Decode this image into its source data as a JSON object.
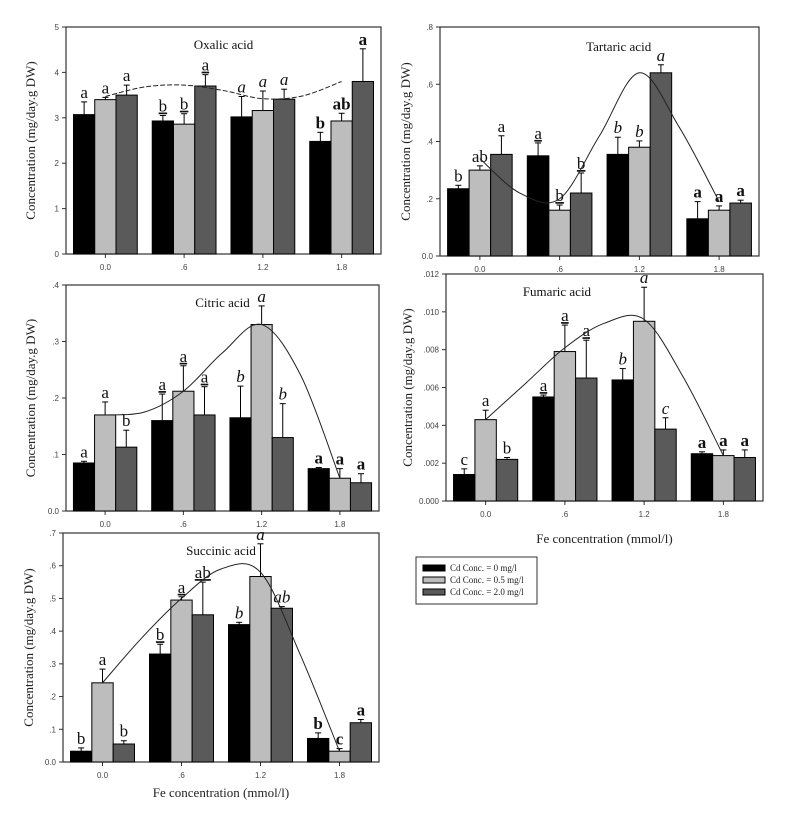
{
  "legend": {
    "entries": [
      {
        "label": "Cd Conc. = 0 mg/l",
        "color": "#000000"
      },
      {
        "label": "Cd Conc. = 0.5 mg/l",
        "color": "#bdbdbd"
      },
      {
        "label": "Cd Conc. = 2.0 mg/l",
        "color": "#5a5a5a"
      }
    ]
  },
  "chart_data": [
    {
      "type": "bar",
      "title": "Oxalic acid",
      "xlabel": "",
      "ylabel": "Concentration (mg/day.g DW)",
      "categories": [
        "0.0",
        ".6",
        "1.2",
        "1.8"
      ],
      "ylim": [
        0,
        5
      ],
      "yticks": [
        "0",
        "1",
        "2",
        "3",
        "4",
        "5"
      ],
      "yticks_values": [
        0,
        1,
        2,
        3,
        4,
        5
      ],
      "series": [
        {
          "name": "Cd Conc. = 0 mg/l",
          "values": [
            3.07,
            2.93,
            3.02,
            2.48
          ],
          "errors": [
            0.28,
            0.12,
            0.45,
            0.2
          ],
          "letters": [
            "a",
            "b",
            "a",
            "b"
          ],
          "italic": [
            false,
            false,
            true,
            false
          ],
          "underline": [
            false,
            true,
            false,
            false
          ],
          "bold": [
            false,
            false,
            false,
            true
          ]
        },
        {
          "name": "Cd Conc. = 0.5 mg/l",
          "values": [
            3.4,
            2.86,
            3.16,
            2.93
          ],
          "errors": [
            0.05,
            0.23,
            0.43,
            0.17
          ],
          "letters": [
            "a",
            "b",
            "a",
            "ab"
          ],
          "italic": [
            false,
            false,
            true,
            false
          ],
          "underline": [
            false,
            true,
            false,
            false
          ],
          "bold": [
            false,
            false,
            false,
            true
          ]
        },
        {
          "name": "Cd Conc. = 2.0 mg/l",
          "values": [
            3.5,
            3.7,
            3.41,
            3.8
          ],
          "errors": [
            0.22,
            0.25,
            0.22,
            0.72
          ],
          "letters": [
            "a",
            "a",
            "a",
            "a"
          ],
          "italic": [
            false,
            false,
            true,
            false
          ],
          "underline": [
            false,
            true,
            false,
            false
          ],
          "bold": [
            false,
            false,
            false,
            true
          ]
        }
      ],
      "trend": {
        "style": "dashed",
        "x": [
          0.0,
          0.3,
          0.6,
          0.9,
          1.2,
          1.5,
          1.8
        ],
        "y": [
          3.47,
          3.68,
          3.72,
          3.6,
          3.42,
          3.48,
          3.8
        ]
      }
    },
    {
      "type": "bar",
      "title": "Tartaric acid",
      "xlabel": "",
      "ylabel": "Concentration (mg/day.g DW)",
      "categories": [
        "0.0",
        ".6",
        "1.2",
        "1.8"
      ],
      "ylim": [
        0,
        0.8
      ],
      "yticks": [
        "0.0",
        ".2",
        ".4",
        ".6",
        ".8"
      ],
      "yticks_values": [
        0,
        0.2,
        0.4,
        0.6,
        0.8
      ],
      "series": [
        {
          "name": "Cd Conc. = 0 mg/l",
          "values": [
            0.235,
            0.35,
            0.355,
            0.13
          ],
          "errors": [
            0.012,
            0.045,
            0.06,
            0.06
          ],
          "letters": [
            "b",
            "a",
            "b",
            "a"
          ],
          "italic": [
            false,
            false,
            true,
            false
          ],
          "underline": [
            false,
            true,
            false,
            false
          ],
          "bold": [
            false,
            false,
            false,
            true
          ]
        },
        {
          "name": "Cd Conc. = 0.5 mg/l",
          "values": [
            0.3,
            0.16,
            0.38,
            0.16
          ],
          "errors": [
            0.015,
            0.018,
            0.022,
            0.015
          ],
          "letters": [
            "ab",
            "b",
            "b",
            "a"
          ],
          "italic": [
            false,
            false,
            true,
            false
          ],
          "underline": [
            false,
            true,
            false,
            false
          ],
          "bold": [
            false,
            false,
            false,
            true
          ]
        },
        {
          "name": "Cd Conc. = 2.0 mg/l",
          "values": [
            0.355,
            0.22,
            0.64,
            0.185
          ],
          "errors": [
            0.065,
            0.07,
            0.028,
            0.01
          ],
          "letters": [
            "a",
            "b",
            "a",
            "a"
          ],
          "italic": [
            false,
            false,
            true,
            false
          ],
          "underline": [
            false,
            true,
            false,
            false
          ],
          "bold": [
            false,
            false,
            false,
            true
          ]
        }
      ],
      "trend": {
        "style": "solid",
        "x": [
          0.0,
          0.3,
          0.6,
          0.9,
          1.2,
          1.5,
          1.8
        ],
        "y": [
          0.34,
          0.22,
          0.2,
          0.42,
          0.64,
          0.45,
          0.19
        ]
      }
    },
    {
      "type": "bar",
      "title": "Citric acid",
      "xlabel": "",
      "ylabel": "Concentration (mg/day.g DW)",
      "categories": [
        "0.0",
        ".6",
        "1.2",
        "1.8"
      ],
      "ylim": [
        0,
        0.4
      ],
      "yticks": [
        "0.0",
        ".1",
        ".2",
        ".3",
        ".4"
      ],
      "yticks_values": [
        0,
        0.1,
        0.2,
        0.3,
        0.4
      ],
      "series": [
        {
          "name": "Cd Conc. = 0 mg/l",
          "values": [
            0.085,
            0.16,
            0.165,
            0.075
          ],
          "errors": [
            0.003,
            0.047,
            0.056,
            0.002
          ],
          "letters": [
            "a",
            "a",
            "b",
            "a"
          ],
          "italic": [
            false,
            false,
            true,
            false
          ],
          "underline": [
            false,
            true,
            false,
            false
          ],
          "bold": [
            false,
            false,
            false,
            true
          ]
        },
        {
          "name": "Cd Conc. = 0.5 mg/l",
          "values": [
            0.17,
            0.212,
            0.33,
            0.058
          ],
          "errors": [
            0.023,
            0.045,
            0.033,
            0.017
          ],
          "letters": [
            "a",
            "a",
            "a",
            "a"
          ],
          "italic": [
            false,
            false,
            true,
            false
          ],
          "underline": [
            false,
            true,
            false,
            false
          ],
          "bold": [
            false,
            false,
            false,
            true
          ]
        },
        {
          "name": "Cd Conc. = 2.0 mg/l",
          "values": [
            0.113,
            0.17,
            0.13,
            0.05
          ],
          "errors": [
            0.03,
            0.05,
            0.06,
            0.016
          ],
          "letters": [
            "b",
            "a",
            "b",
            "a"
          ],
          "italic": [
            false,
            false,
            true,
            false
          ],
          "underline": [
            false,
            true,
            false,
            false
          ],
          "bold": [
            false,
            false,
            false,
            true
          ]
        }
      ],
      "trend": {
        "style": "solid",
        "x": [
          0.0,
          0.3,
          0.6,
          0.9,
          1.2,
          1.5,
          1.8
        ],
        "y": [
          0.17,
          0.175,
          0.212,
          0.28,
          0.33,
          0.24,
          0.058
        ]
      }
    },
    {
      "type": "bar",
      "title": "Fumaric acid",
      "xlabel": "Fe concentration (mmol/l)",
      "ylabel": "Concentration (mg/day.g DW)",
      "categories": [
        "0.0",
        ".6",
        "1.2",
        "1.8"
      ],
      "ylim": [
        0,
        0.012
      ],
      "yticks": [
        "0.000",
        ".002",
        ".004",
        ".006",
        ".008",
        ".010",
        ".012"
      ],
      "yticks_values": [
        0,
        0.002,
        0.004,
        0.006,
        0.008,
        0.01,
        0.012
      ],
      "series": [
        {
          "name": "Cd Conc. = 0 mg/l",
          "values": [
            0.0014,
            0.0055,
            0.0064,
            0.0025
          ],
          "errors": [
            0.0003,
            0.0001,
            0.0006,
            0.0001
          ],
          "letters": [
            "c",
            "a",
            "b",
            "a"
          ],
          "italic": [
            false,
            false,
            true,
            false
          ],
          "underline": [
            false,
            true,
            false,
            false
          ],
          "bold": [
            false,
            false,
            false,
            true
          ]
        },
        {
          "name": "Cd Conc. = 0.5 mg/l",
          "values": [
            0.0043,
            0.0079,
            0.0095,
            0.0024
          ],
          "errors": [
            0.0005,
            0.0014,
            0.0018,
            0.0003
          ],
          "letters": [
            "a",
            "a",
            "a",
            "a"
          ],
          "italic": [
            false,
            false,
            true,
            false
          ],
          "underline": [
            false,
            true,
            false,
            false
          ],
          "bold": [
            false,
            false,
            false,
            true
          ]
        },
        {
          "name": "Cd Conc. = 2.0 mg/l",
          "values": [
            0.0022,
            0.0065,
            0.0038,
            0.0023
          ],
          "errors": [
            0.0001,
            0.002,
            0.0006,
            0.0004
          ],
          "letters": [
            "b",
            "a",
            "c",
            "a"
          ],
          "italic": [
            false,
            false,
            true,
            false
          ],
          "underline": [
            false,
            true,
            false,
            false
          ],
          "bold": [
            false,
            false,
            false,
            true
          ]
        }
      ],
      "trend": {
        "style": "solid",
        "x": [
          0.0,
          0.3,
          0.6,
          0.9,
          1.2,
          1.5,
          1.8
        ],
        "y": [
          0.0043,
          0.0062,
          0.0081,
          0.0094,
          0.0096,
          0.0065,
          0.0024
        ]
      }
    },
    {
      "type": "bar",
      "title": "Succinic acid",
      "xlabel": "Fe concentration (mmol/l)",
      "ylabel": "Concentration (mg/day.g DW)",
      "categories": [
        "0.0",
        ".6",
        "1.2",
        "1.8"
      ],
      "ylim": [
        0,
        0.7
      ],
      "yticks": [
        "0.0",
        ".1",
        ".2",
        ".3",
        ".4",
        ".5",
        ".6",
        ".7"
      ],
      "yticks_values": [
        0,
        0.1,
        0.2,
        0.3,
        0.4,
        0.5,
        0.6,
        0.7
      ],
      "series": [
        {
          "name": "Cd Conc. = 0 mg/l",
          "values": [
            0.033,
            0.33,
            0.42,
            0.072
          ],
          "errors": [
            0.01,
            0.03,
            0.007,
            0.017
          ],
          "letters": [
            "b",
            "b",
            "b",
            "b"
          ],
          "italic": [
            false,
            false,
            true,
            false
          ],
          "underline": [
            false,
            true,
            false,
            false
          ],
          "bold": [
            false,
            false,
            false,
            true
          ]
        },
        {
          "name": "Cd Conc. = 0.5 mg/l",
          "values": [
            0.242,
            0.495,
            0.567,
            0.033
          ],
          "errors": [
            0.042,
            0.01,
            0.1,
            0.008
          ],
          "letters": [
            "a",
            "a",
            "a",
            "c"
          ],
          "italic": [
            false,
            false,
            true,
            false
          ],
          "underline": [
            false,
            true,
            false,
            false
          ],
          "bold": [
            false,
            false,
            false,
            true
          ]
        },
        {
          "name": "Cd Conc. = 2.0 mg/l",
          "values": [
            0.055,
            0.45,
            0.47,
            0.12
          ],
          "errors": [
            0.01,
            0.1,
            0.005,
            0.01
          ],
          "letters": [
            "b",
            "ab",
            "ab",
            "a"
          ],
          "italic": [
            false,
            false,
            true,
            false
          ],
          "underline": [
            false,
            true,
            false,
            false
          ],
          "bold": [
            false,
            false,
            false,
            true
          ]
        }
      ],
      "trend": {
        "style": "solid",
        "x": [
          0.0,
          0.3,
          0.6,
          0.9,
          1.2,
          1.5,
          1.8
        ],
        "y": [
          0.242,
          0.38,
          0.5,
          0.59,
          0.58,
          0.33,
          0.033
        ]
      }
    }
  ]
}
